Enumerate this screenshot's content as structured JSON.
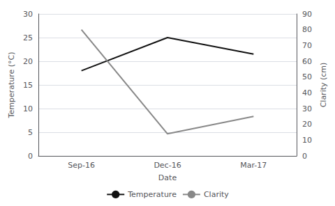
{
  "chart_data": {
    "type": "line",
    "categories": [
      "Sep-16",
      "Dec-16",
      "Mar-17"
    ],
    "xlabel": "Date",
    "ylabel": "Temperature (°C)",
    "y2label": "Clarity (cm)",
    "series": [
      {
        "name": "Temperature",
        "color": "#111111",
        "values": [
          18.0,
          25.0,
          21.5
        ]
      },
      {
        "name": "Clarity",
        "color": "#888888",
        "values": [
          80.0,
          14.0,
          25.0
        ],
        "axis": "y2"
      }
    ],
    "ylim": [
      0,
      30
    ],
    "yticks": [
      0,
      5,
      10,
      15,
      20,
      25,
      30
    ],
    "y2lim": [
      0,
      90
    ],
    "y2ticks": [
      0,
      10,
      20,
      30,
      40,
      50,
      60,
      70,
      80,
      90
    ],
    "grid": true,
    "legend": "bottom"
  }
}
